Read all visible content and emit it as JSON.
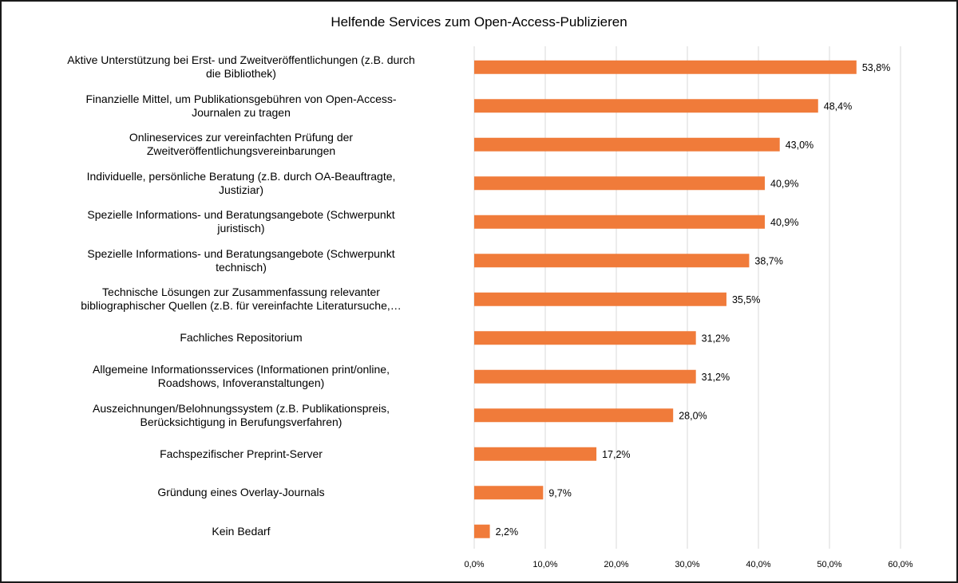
{
  "chart_data": {
    "type": "bar",
    "orientation": "horizontal",
    "title": "Helfende Services zum Open-Access-Publizieren",
    "xlabel": "",
    "ylabel": "",
    "xlim": [
      0,
      60
    ],
    "grid": true,
    "legend": "none",
    "color": "#f07b3a",
    "categories": [
      "Aktive Unterstützung bei Erst- und Zweitveröffentlichungen (z.B. durch die Bibliothek)",
      "Finanzielle Mittel, um Publikationsgebühren von Open-Access-Journalen zu tragen",
      "Onlineservices zur vereinfachten Prüfung der Zweitveröffentlichungsvereinbarungen",
      "Individuelle, persönliche Beratung (z.B. durch OA-Beauftragte, Justiziar)",
      "Spezielle Informations- und Beratungsangebote (Schwerpunkt juristisch)",
      "Spezielle Informations- und Beratungsangebote (Schwerpunkt technisch)",
      "Technische Lösungen zur Zusammenfassung relevanter bibliographischer Quellen (z.B. für vereinfachte Literatursuche,…",
      "Fachliches Repositorium",
      "Allgemeine Informationsservices (Informationen print/online, Roadshows, Infoveranstaltungen)",
      "Auszeichnungen/Belohnungssystem (z.B. Publikationspreis, Berücksichtigung in Berufungsverfahren)",
      "Fachspezifischer Preprint-Server",
      "Gründung eines Overlay-Journals",
      "Kein Bedarf"
    ],
    "category_lines": [
      "Aktive Unterstützung bei Erst- und Zweitveröffentlichungen (z.B. durch\ndie Bibliothek)",
      "Finanzielle Mittel, um Publikationsgebühren von Open-Access-\nJournalen zu tragen",
      "Onlineservices zur vereinfachten Prüfung der\nZweitveröffentlichungsvereinbarungen",
      "Individuelle, persönliche Beratung (z.B. durch OA-Beauftragte,\nJustiziar)",
      "Spezielle Informations- und Beratungsangebote (Schwerpunkt\njuristisch)",
      "Spezielle Informations- und Beratungsangebote (Schwerpunkt\ntechnisch)",
      "Technische Lösungen zur Zusammenfassung relevanter\nbibliographischer Quellen (z.B. für vereinfachte Literatursuche,…",
      "Fachliches Repositorium",
      "Allgemeine Informationsservices (Informationen print/online,\nRoadshows, Infoveranstaltungen)",
      "Auszeichnungen/Belohnungssystem (z.B. Publikationspreis,\nBerücksichtigung in Berufungsverfahren)",
      "Fachspezifischer Preprint-Server",
      "Gründung eines Overlay-Journals",
      "Kein Bedarf"
    ],
    "values": [
      53.8,
      48.4,
      43.0,
      40.9,
      40.9,
      38.7,
      35.5,
      31.2,
      31.2,
      28.0,
      17.2,
      9.7,
      2.2
    ],
    "value_labels": [
      "53,8%",
      "48,4%",
      "43,0%",
      "40,9%",
      "40,9%",
      "38,7%",
      "35,5%",
      "31,2%",
      "31,2%",
      "28,0%",
      "17,2%",
      "9,7%",
      "2,2%"
    ],
    "x_ticks": [
      0,
      10,
      20,
      30,
      40,
      50,
      60
    ],
    "x_tick_labels": [
      "0,0%",
      "10,0%",
      "20,0%",
      "30,0%",
      "40,0%",
      "50,0%",
      "60,0%"
    ]
  }
}
